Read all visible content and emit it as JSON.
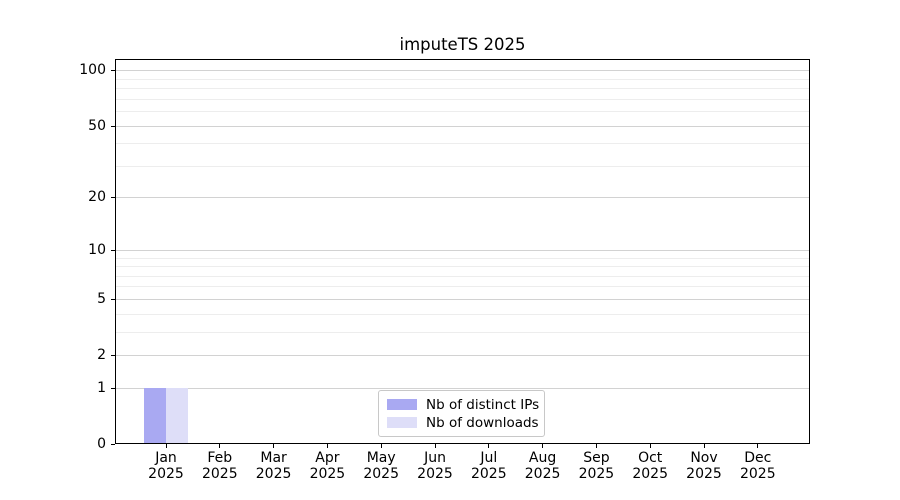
{
  "chart_data": {
    "type": "bar",
    "title": "imputeTS 2025",
    "categories": [
      "Jan 2025",
      "Feb 2025",
      "Mar 2025",
      "Apr 2025",
      "May 2025",
      "Jun 2025",
      "Jul 2025",
      "Aug 2025",
      "Sep 2025",
      "Oct 2025",
      "Nov 2025",
      "Dec 2025"
    ],
    "series": [
      {
        "name": "Nb of distinct IPs",
        "color": "#a9a9f2",
        "values": [
          1,
          0,
          0,
          0,
          0,
          0,
          0,
          0,
          0,
          0,
          0,
          0
        ]
      },
      {
        "name": "Nb of downloads",
        "color": "#dedef8",
        "values": [
          1,
          0,
          0,
          0,
          0,
          0,
          0,
          0,
          0,
          0,
          0,
          0
        ]
      }
    ],
    "xlabel": "",
    "ylabel": "",
    "yscale": "log1p",
    "ylim": [
      0,
      115
    ],
    "y_major_ticks": [
      0,
      1,
      2,
      5,
      10,
      20,
      50,
      100
    ],
    "y_minor_gridlines": [
      3,
      4,
      6,
      7,
      8,
      9,
      30,
      40,
      60,
      70,
      80,
      90
    ],
    "grid": true,
    "legend_position": "lower center"
  }
}
